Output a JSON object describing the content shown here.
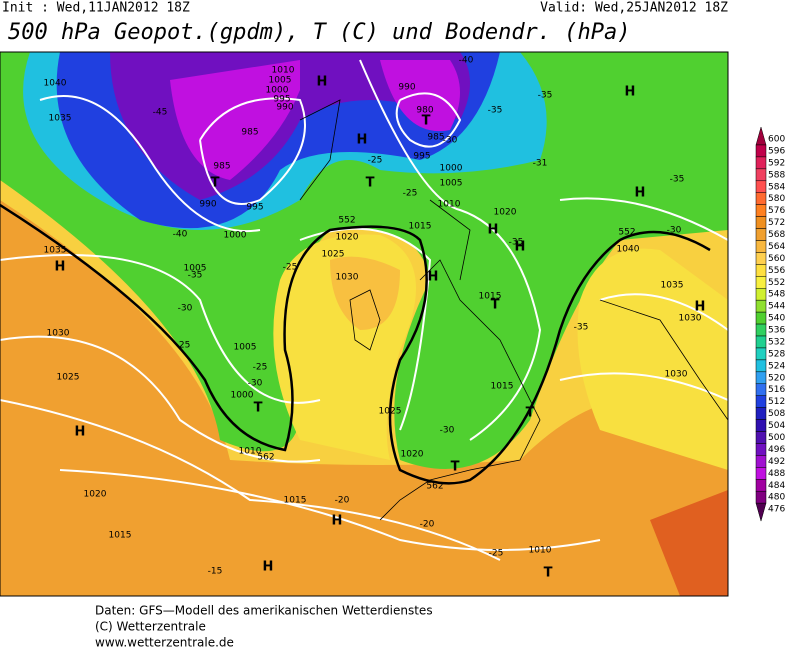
{
  "header": {
    "init": "Init : Wed,11JAN2012 18Z",
    "valid": "Valid: Wed,25JAN2012 18Z",
    "title": "500 hPa Geopot.(gpdm), T (C) und Bodendr. (hPa)"
  },
  "colorbar": {
    "ticks": [
      600,
      596,
      592,
      588,
      584,
      580,
      576,
      572,
      568,
      564,
      560,
      556,
      552,
      548,
      544,
      540,
      536,
      532,
      528,
      524,
      520,
      516,
      512,
      508,
      504,
      500,
      496,
      492,
      488,
      484,
      480,
      476
    ],
    "colors": [
      "#a0003c",
      "#c0004a",
      "#e0205a",
      "#f04060",
      "#ff5050",
      "#ff6a30",
      "#ff8020",
      "#f09020",
      "#f0a030",
      "#f8b840",
      "#ffd050",
      "#ffe040",
      "#f8f040",
      "#d0f030",
      "#90e030",
      "#50d030",
      "#30d060",
      "#20d090",
      "#20d0c0",
      "#20c0e0",
      "#30a0f0",
      "#3070f0",
      "#2040e0",
      "#2020c0",
      "#3010b0",
      "#5010b0",
      "#7010c0",
      "#a010d0",
      "#c010e0",
      "#a000a0",
      "#800080",
      "#500050"
    ]
  },
  "map": {
    "labels": [
      "1040",
      "1035",
      "1035",
      "1030",
      "1025",
      "1020",
      "1015",
      "H",
      "H",
      "H",
      "H",
      "1010",
      "1005",
      "1000",
      "995",
      "990",
      "985",
      "985",
      "990",
      "995",
      "1000",
      "1005",
      "T",
      "H",
      "H",
      "T",
      "-45",
      "-40",
      "-35",
      "-30",
      "-25",
      "-25",
      "990",
      "980",
      "985",
      "995",
      "1000",
      "1005",
      "1010",
      "1015",
      "1020",
      "1025",
      "1030",
      "-40",
      "-35",
      "-30",
      "-25",
      "-25",
      "T",
      "1020",
      "H",
      "H",
      "H",
      "-35",
      "-31",
      "-35",
      "1015",
      "T",
      "1015",
      "H",
      "H",
      "-35",
      "-30",
      "1040",
      "1035",
      "1030",
      "H",
      "-35",
      "1030",
      "T",
      "-30",
      "1020",
      "T",
      "1025",
      "1005",
      "-25",
      "-30",
      "1000",
      "T",
      "1010",
      "1015",
      "-20",
      "-20",
      "-25",
      "1010",
      "T",
      "-15",
      "562",
      "562",
      "552",
      "552"
    ]
  },
  "footer": {
    "lines": [
      "Daten: GFS—Modell des amerikanischen Wetterdienstes",
      "(C) Wetterzentrale",
      "www.wetterzentrale.de"
    ]
  }
}
